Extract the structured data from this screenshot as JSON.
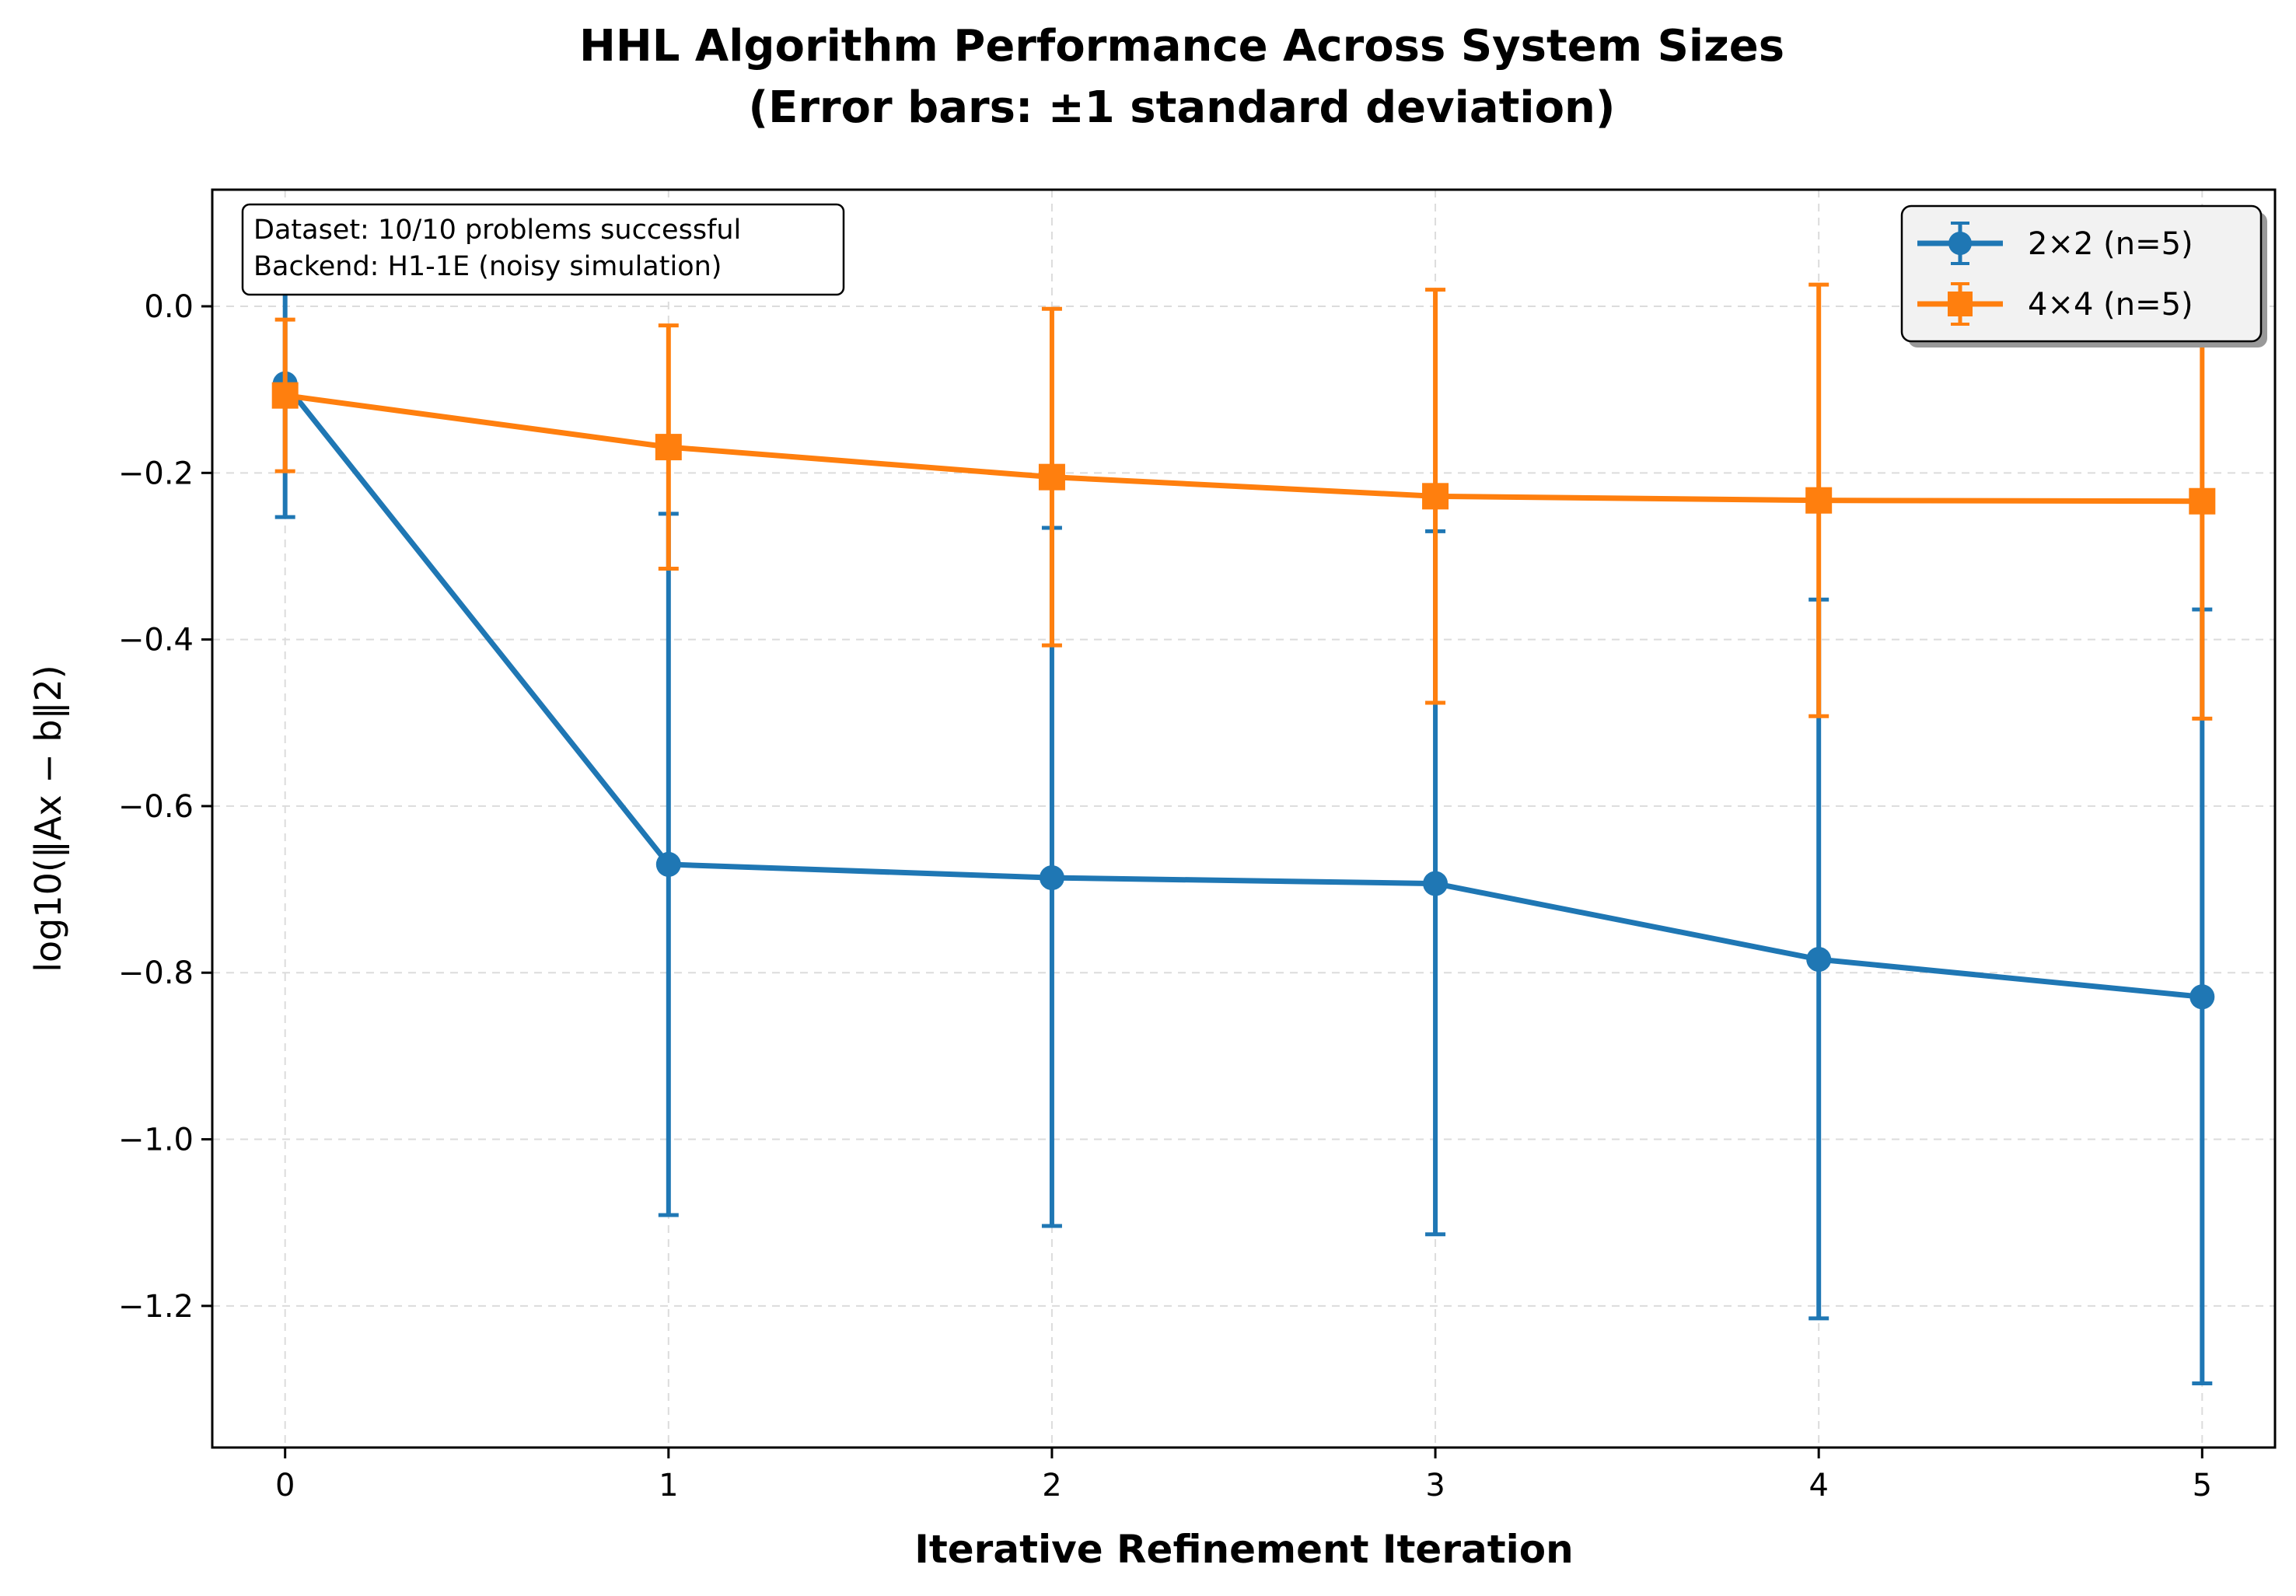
{
  "chart_data": {
    "type": "line",
    "title": "HHL Algorithm Performance Across System Sizes",
    "subtitle": "(Error bars: ±1 standard deviation)",
    "xlabel": "Iterative Refinement Iteration",
    "ylabel": "log10(‖Ax − b‖2)",
    "x": [
      0,
      1,
      2,
      3,
      4,
      5
    ],
    "xlim": [
      -0.19,
      5.19
    ],
    "ylim": [
      -1.37,
      0.14
    ],
    "x_ticks": [
      0,
      1,
      2,
      3,
      4,
      5
    ],
    "y_ticks": [
      0.0,
      -0.2,
      -0.4,
      -0.6,
      -0.8,
      -1.0,
      -1.2
    ],
    "y_tick_labels": [
      "0.0",
      "−0.2",
      "−0.4",
      "−0.6",
      "−0.8",
      "−1.0",
      "−1.2"
    ],
    "grid": true,
    "legend_position": "top-right",
    "series": [
      {
        "name": "2×2 (n=5)",
        "color": "#1f77b4",
        "marker": "circle",
        "values": [
          -0.093,
          -0.67,
          -0.686,
          -0.693,
          -0.784,
          -0.829
        ],
        "err_low": [
          -0.253,
          -1.091,
          -1.104,
          -1.114,
          -1.215,
          -1.293
        ],
        "err_high": [
          0.067,
          -0.249,
          -0.266,
          -0.27,
          -0.352,
          -0.364
        ]
      },
      {
        "name": "4×4 (n=5)",
        "color": "#ff7f0e",
        "marker": "square",
        "values": [
          -0.107,
          -0.169,
          -0.205,
          -0.228,
          -0.233,
          -0.234
        ],
        "err_low": [
          -0.198,
          -0.315,
          -0.407,
          -0.476,
          -0.492,
          -0.495
        ],
        "err_high": [
          -0.016,
          -0.023,
          -0.003,
          0.02,
          0.026,
          0.027
        ]
      }
    ],
    "annotation": {
      "line1": "Dataset: 10/10 problems successful",
      "line2": "Backend: H1-1E (noisy simulation)"
    }
  }
}
